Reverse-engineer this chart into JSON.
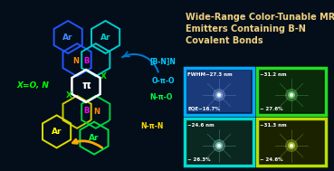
{
  "bg_color": "#030e1a",
  "title_text": "Wide-Range Color-Tunable MR\nEmitters Containing B-N\nCovalent Bonds",
  "title_color": "#f0d080",
  "title_fontsize": 7.0,
  "panels": [
    {
      "row": 0,
      "col": 0,
      "border_color": "#00aaff",
      "bg_color": "#0a1f4a",
      "label_top": "FWHM~27.3 nm",
      "label_bot": "EQE~16.7%",
      "glow_color": "#aaccff",
      "inner_color": "#1a3a7a"
    },
    {
      "row": 0,
      "col": 1,
      "border_color": "#22dd22",
      "bg_color": "#061a06",
      "label_top": "~31.2 nm",
      "label_bot": "~ 27.6%",
      "glow_color": "#88ff88",
      "inner_color": "#0a2a0a"
    },
    {
      "row": 1,
      "col": 0,
      "border_color": "#00ddcc",
      "bg_color": "#061a18",
      "label_top": "~24.6 nm",
      "label_bot": "~ 26.3%",
      "glow_color": "#aaffee",
      "inner_color": "#0a2820"
    },
    {
      "row": 1,
      "col": 1,
      "border_color": "#bbdd00",
      "bg_color": "#131a00",
      "label_top": "~31.3 nm",
      "label_bot": "~ 24.6%",
      "glow_color": "#ddff44",
      "inner_color": "#1a2200"
    }
  ]
}
